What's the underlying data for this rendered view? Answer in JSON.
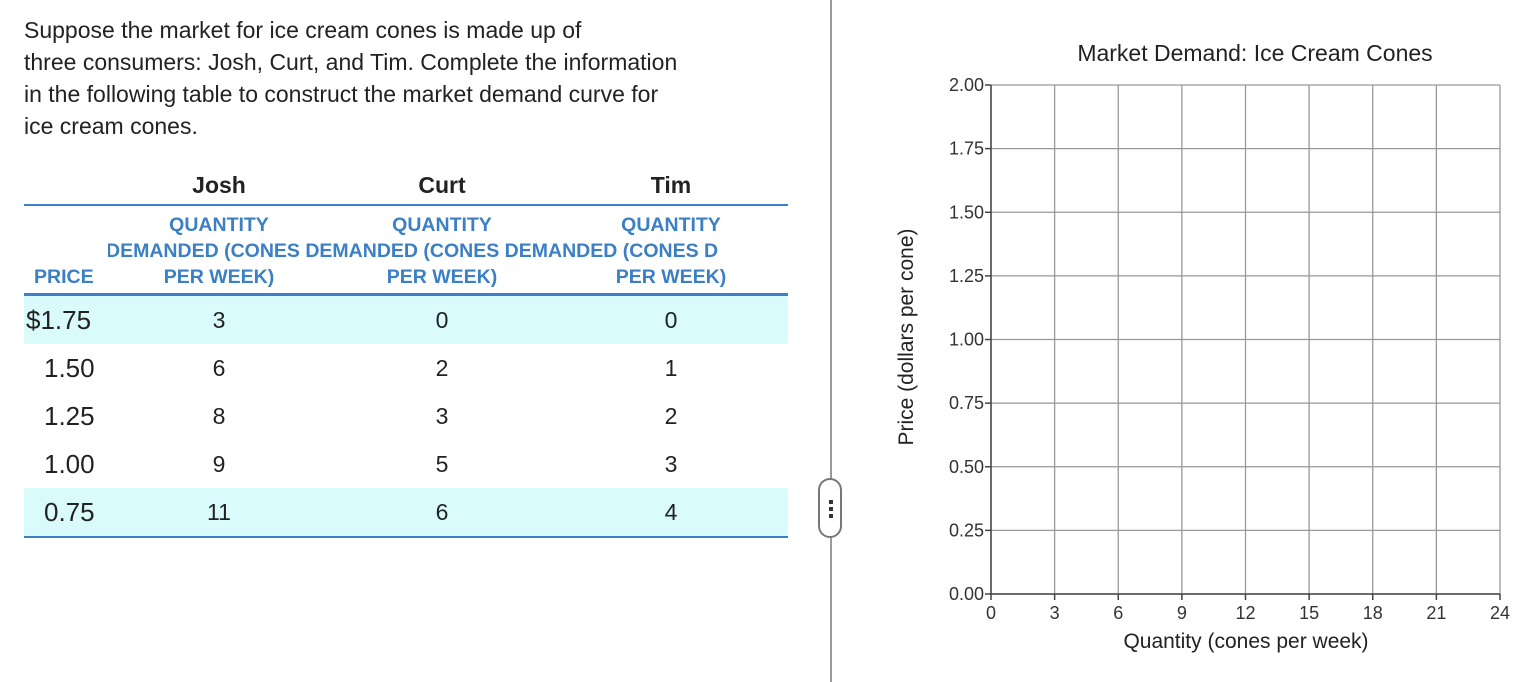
{
  "question": {
    "intro_lines": [
      "Suppose the market for ice cream cones is made up of",
      "three consumers: Josh, Curt, and Tim. Complete the information",
      "in the following table to construct the market demand curve for",
      "ice cream cones."
    ]
  },
  "table": {
    "people": [
      "Josh",
      "Curt",
      "Tim"
    ],
    "price_header": "PRICE",
    "quantity_header_lines": [
      "QUANTITY",
      "DEMANDED (CONES DEMANDED (CONES DEMANDED (CONES D",
      "PER WEEK)"
    ],
    "rows": [
      {
        "price": "$1.75",
        "josh": "3",
        "curt": "0",
        "tim": "0"
      },
      {
        "price": "1.50",
        "josh": "6",
        "curt": "2",
        "tim": "1"
      },
      {
        "price": "1.25",
        "josh": "8",
        "curt": "3",
        "tim": "2"
      },
      {
        "price": "1.00",
        "josh": "9",
        "curt": "5",
        "tim": "3"
      },
      {
        "price": "0.75",
        "josh": "11",
        "curt": "6",
        "tim": "4"
      }
    ],
    "colors": {
      "header": "#3b7fc4",
      "shade": "#d9fbfb"
    }
  },
  "chart_data": {
    "type": "line",
    "title": "Market Demand: Ice Cream Cones",
    "xlabel": "Quantity (cones per week)",
    "ylabel": "Price (dollars per cone)",
    "xlim": [
      0,
      24
    ],
    "ylim": [
      0,
      2
    ],
    "x_ticks": [
      "0",
      "3",
      "6",
      "9",
      "12",
      "15",
      "18",
      "21",
      "24"
    ],
    "y_ticks": [
      "0.00",
      "0.25",
      "0.50",
      "0.75",
      "1.00",
      "1.25",
      "1.50",
      "1.75",
      "2.00"
    ],
    "grid": true,
    "series": []
  }
}
